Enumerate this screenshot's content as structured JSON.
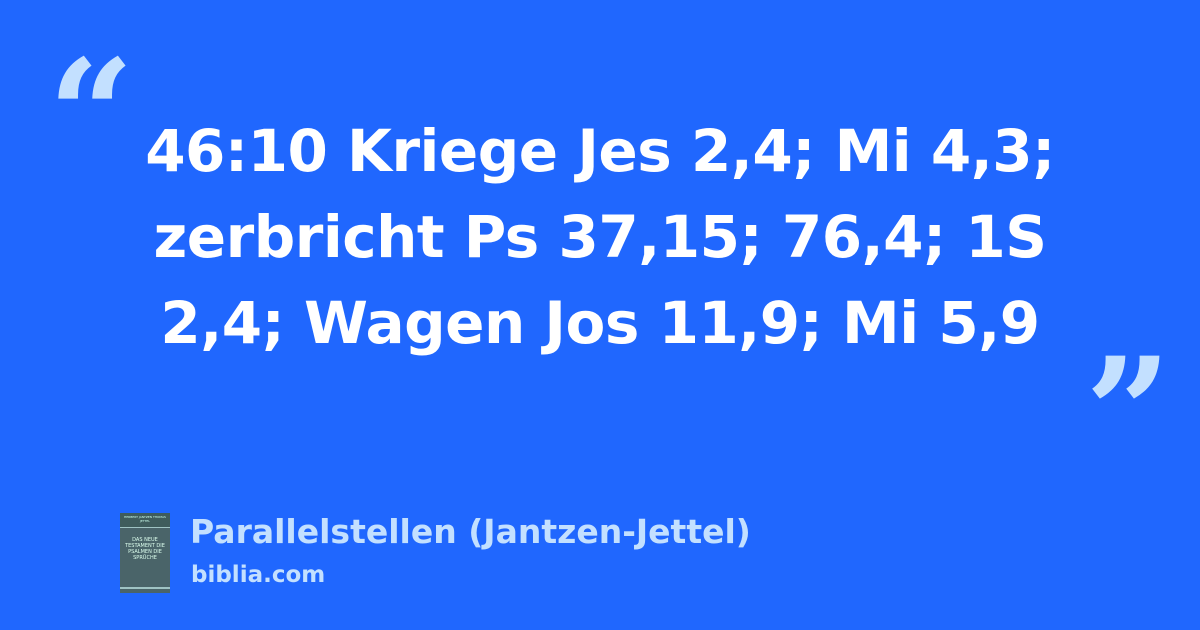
{
  "quote": {
    "text": "46:10 Kriege Jes 2,4; Mi 4,3; zerbricht Ps 37,15; 76,4; 1S 2,4; Wagen Jos 11,9; Mi 5,9",
    "open_mark": "“",
    "close_mark": "”"
  },
  "source": {
    "title": "Parallelstellen (Jantzen-Jettel)",
    "site": "biblia.com",
    "cover": {
      "authors": "HERBERT JANTZEN THOMAS JETTEL",
      "title": "DAS NEUE TESTAMENT DIE PSALMEN DIE SPRÜCHE"
    }
  },
  "colors": {
    "background": "#2067fe",
    "accent": "#c3e0ff",
    "text": "#ffffff"
  }
}
